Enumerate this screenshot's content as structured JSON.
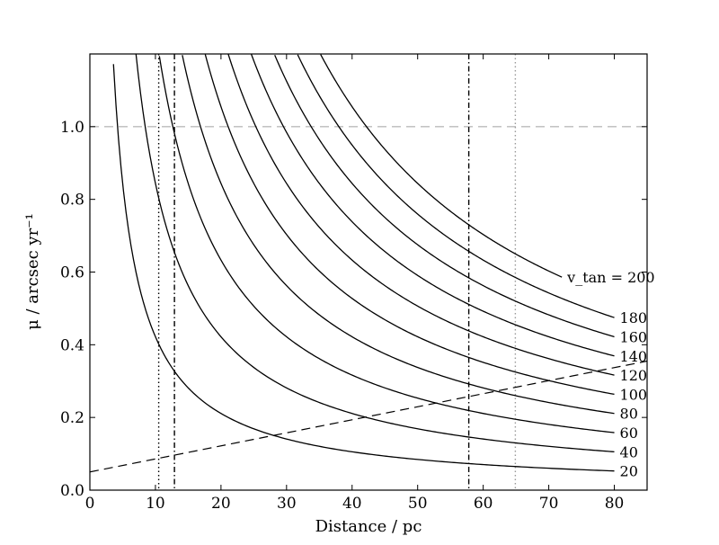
{
  "chart_data": {
    "type": "line",
    "xlabel": "Distance / pc",
    "ylabel": "μ / arcsec yr⁻¹",
    "xlim": [
      0,
      85
    ],
    "ylim": [
      0,
      1.2
    ],
    "xticks": [
      "0",
      "10",
      "20",
      "30",
      "40",
      "50",
      "60",
      "70",
      "80"
    ],
    "yticks": [
      "0.0",
      "0.2",
      "0.4",
      "0.6",
      "0.8",
      "1.0"
    ],
    "curve_relation": "mu = v_tan / (4.74 * d)",
    "series": [
      {
        "name": "20",
        "v_tan": 20,
        "x_start": 3.6,
        "x_end": 80,
        "label": "20"
      },
      {
        "name": "40",
        "v_tan": 40,
        "x_start": 7.0,
        "x_end": 80,
        "label": "40"
      },
      {
        "name": "60",
        "v_tan": 60,
        "x_start": 10.6,
        "x_end": 80,
        "label": "60"
      },
      {
        "name": "80",
        "v_tan": 80,
        "x_start": 14.1,
        "x_end": 80,
        "label": "80"
      },
      {
        "name": "100",
        "v_tan": 100,
        "x_start": 17.6,
        "x_end": 80,
        "label": "100"
      },
      {
        "name": "120",
        "v_tan": 120,
        "x_start": 21.1,
        "x_end": 80,
        "label": "120"
      },
      {
        "name": "140",
        "v_tan": 140,
        "x_start": 24.6,
        "x_end": 80,
        "label": "140"
      },
      {
        "name": "160",
        "v_tan": 160,
        "x_start": 28.2,
        "x_end": 80,
        "label": "160"
      },
      {
        "name": "180",
        "v_tan": 180,
        "x_start": 31.7,
        "x_end": 80,
        "label": "180"
      },
      {
        "name": "200",
        "v_tan": 200,
        "x_start": 35.2,
        "x_end": 72,
        "label": "v_tan = 200"
      }
    ],
    "reference_lines": [
      {
        "orientation": "horizontal",
        "value": 1.0,
        "style": "dashed",
        "color": "#bbbbbb"
      },
      {
        "orientation": "vertical",
        "value": 10.5,
        "style": "dotted",
        "color": "#000000"
      },
      {
        "orientation": "vertical",
        "value": 12.9,
        "style": "dashdot",
        "color": "#000000"
      },
      {
        "orientation": "vertical",
        "value": 57.8,
        "style": "dashdot",
        "color": "#000000"
      },
      {
        "orientation": "vertical",
        "value": 64.9,
        "style": "dotted",
        "color": "#999999"
      }
    ],
    "limit_line": {
      "style": "dashed",
      "x": [
        0,
        85
      ],
      "y": [
        0.05,
        0.355
      ]
    },
    "grid": false,
    "legend": "inline labels at right end of curves"
  }
}
